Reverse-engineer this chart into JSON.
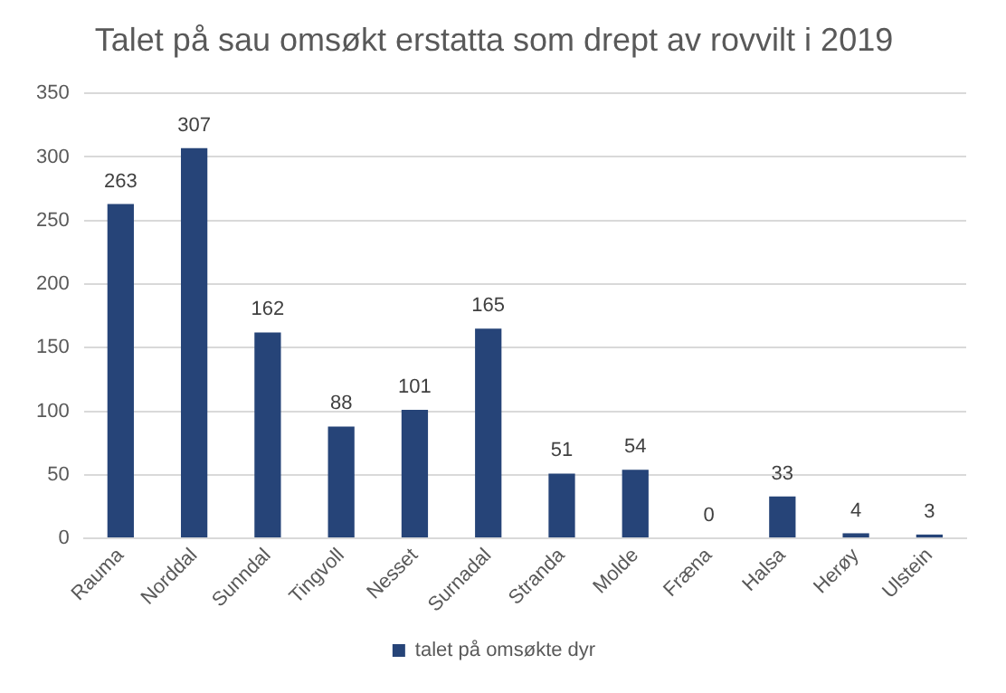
{
  "chart_data": {
    "type": "bar",
    "title": "Talet på sau omsøkt erstatta som drept av rovvilt i 2019",
    "categories": [
      "Rauma",
      "Norddal",
      "Sunndal",
      "Tingvoll",
      "Nesset",
      "Surnadal",
      "Stranda",
      "Molde",
      "Fræna",
      "Halsa",
      "Herøy",
      "Ulstein"
    ],
    "series": [
      {
        "name": "talet på omsøkte dyr",
        "color": "#264478",
        "values": [
          263,
          307,
          162,
          88,
          101,
          165,
          51,
          54,
          0,
          33,
          4,
          3
        ]
      }
    ],
    "ylim": [
      0,
      350
    ],
    "yticks": [
      0,
      50,
      100,
      150,
      200,
      250,
      300,
      350
    ],
    "grid": "y",
    "legend": "bottom",
    "data_labels": true
  }
}
